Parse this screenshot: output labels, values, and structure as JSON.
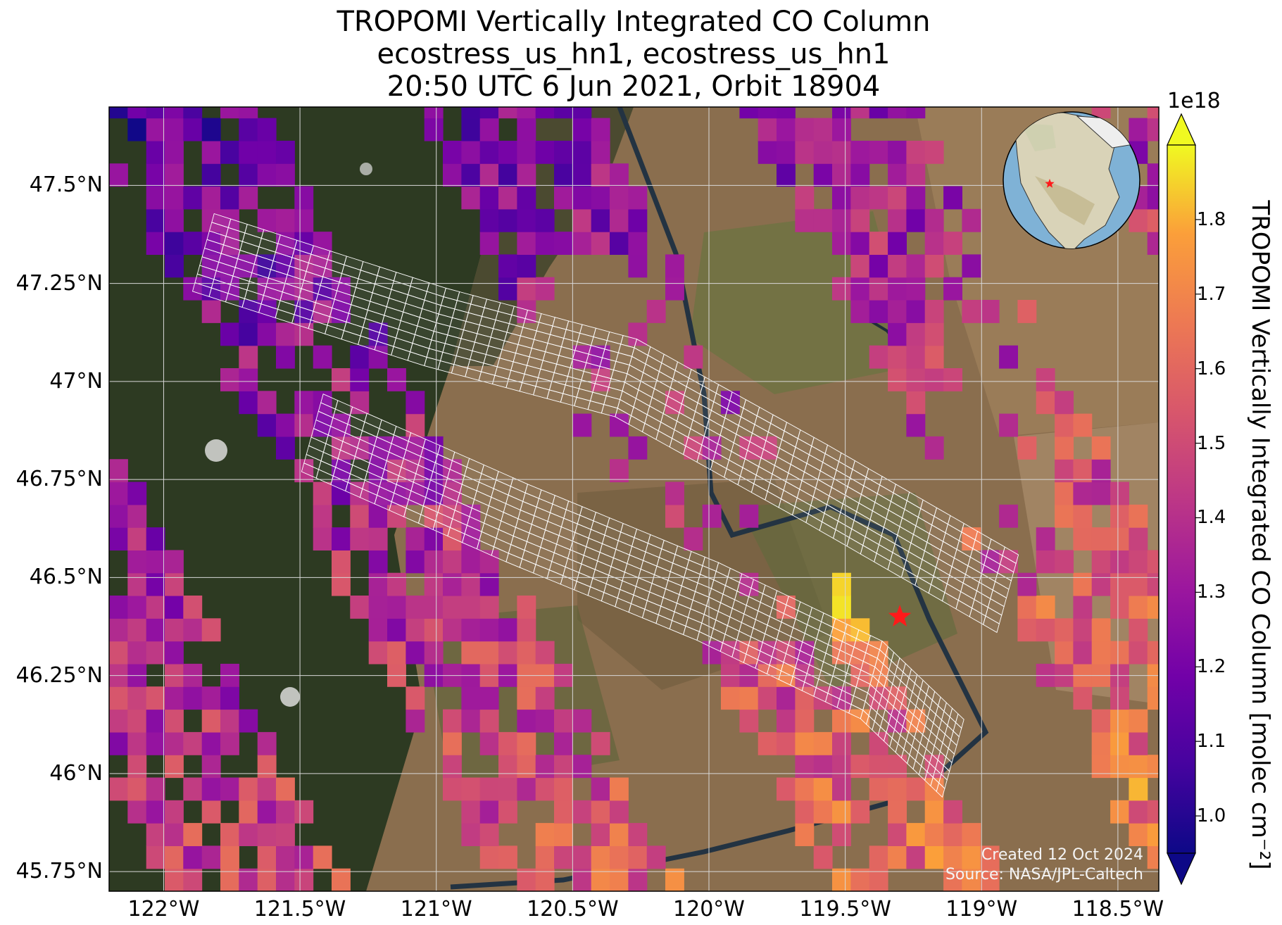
{
  "title": {
    "line1": "TROPOMI Vertically Integrated CO Column",
    "line2": "ecostress_us_hn1, ecostress_us_hn1",
    "line3": "20:50 UTC 6 Jun 2021, Orbit 18904"
  },
  "map": {
    "extent": {
      "lon_min": -122.2,
      "lon_max": -118.35,
      "lat_min": 45.7,
      "lat_max": 47.7
    },
    "lat_ticks": [
      {
        "value": 47.5,
        "label": "47.5°N"
      },
      {
        "value": 47.25,
        "label": "47.25°N"
      },
      {
        "value": 47.0,
        "label": "47°N"
      },
      {
        "value": 46.75,
        "label": "46.75°N"
      },
      {
        "value": 46.5,
        "label": "46.5°N"
      },
      {
        "value": 46.25,
        "label": "46.25°N"
      },
      {
        "value": 46.0,
        "label": "46°N"
      },
      {
        "value": 45.75,
        "label": "45.75°N"
      }
    ],
    "lon_ticks": [
      {
        "value": -122.0,
        "label": "122°W"
      },
      {
        "value": -121.5,
        "label": "121.5°W"
      },
      {
        "value": -121.0,
        "label": "121°W"
      },
      {
        "value": -120.5,
        "label": "120.5°W"
      },
      {
        "value": -120.0,
        "label": "120°W"
      },
      {
        "value": -119.5,
        "label": "119.5°W"
      },
      {
        "value": -119.0,
        "label": "119°W"
      },
      {
        "value": -118.5,
        "label": "118.5°W"
      }
    ],
    "site_marker": {
      "lon": -119.3,
      "lat": 46.4,
      "color": "#ff1a1a"
    },
    "gridline_color": "#d8d8d8",
    "basemap": "satellite imagery"
  },
  "colorbar": {
    "label": "TROPOMI Vertically Integrated CO Column [molec cm⁻²]",
    "exponent": "1e18",
    "colormap": "plasma",
    "vmin": 0.95,
    "vmax": 1.9,
    "ticks": [
      "1.0",
      "1.1",
      "1.2",
      "1.3",
      "1.4",
      "1.5",
      "1.6",
      "1.7",
      "1.8"
    ],
    "extend": "both"
  },
  "credits": {
    "created": "Created 12 Oct 2024",
    "source": "Source: NASA/JPL-Caltech"
  },
  "inset_globe": {
    "marker_color": "#ff1a1a",
    "description_icon": "globe-icon"
  },
  "chart_data": {
    "type": "heatmap",
    "xlabel": "",
    "ylabel": "",
    "value_units": "molec cm^-2 (x1e18)",
    "swaths": [
      {
        "path": [
          [
            -121.85,
            47.34
          ],
          [
            -121.0,
            47.15
          ],
          [
            -120.3,
            47.02
          ],
          [
            -119.6,
            46.75
          ],
          [
            -118.9,
            46.47
          ]
        ]
      },
      {
        "path": [
          [
            -121.45,
            46.88
          ],
          [
            -120.7,
            46.65
          ],
          [
            -120.0,
            46.45
          ],
          [
            -119.4,
            46.25
          ],
          [
            -119.1,
            46.05
          ]
        ]
      }
    ]
  }
}
